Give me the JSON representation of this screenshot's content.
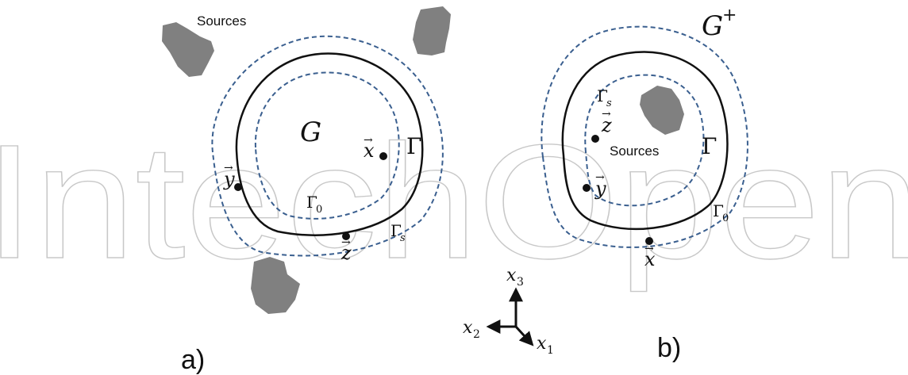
{
  "watermark": {
    "text": "IntechOpen"
  },
  "panel_a": {
    "caption": "a)",
    "sources_label": "Sources",
    "region_label": "G",
    "boundary_label": "Γ",
    "inner_label": "Γ",
    "inner_sub": "0",
    "outer_label": "Γ",
    "outer_sub": "s",
    "point_x": "x",
    "point_y": "y",
    "point_z": "z"
  },
  "panel_b": {
    "caption": "b)",
    "region_label": "G",
    "region_sup": "+",
    "sources_label": "Sources",
    "boundary_label": "Γ",
    "inner_label": "Γ",
    "inner_sub": "s",
    "outer_label": "Γ",
    "outer_sub": "0",
    "point_x": "x",
    "point_y": "y",
    "point_z": "z"
  },
  "axes": {
    "x1": "x",
    "x1_sub": "1",
    "x2": "x",
    "x2_sub": "2",
    "x3": "x",
    "x3_sub": "3"
  },
  "colors": {
    "dashed": "#3a5f8f",
    "solid": "#111111",
    "source_fill": "#808080",
    "watermark": "#c8c8c8"
  }
}
